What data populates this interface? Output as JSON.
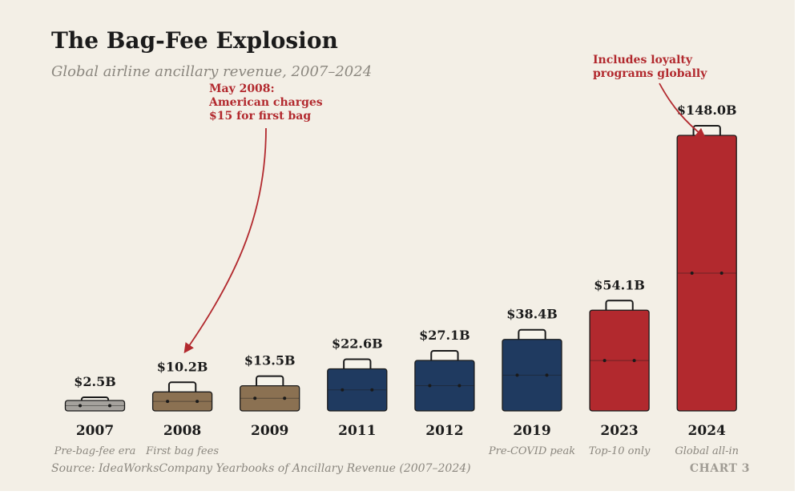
{
  "title": "The Bag-Fee Explosion",
  "subtitle": "Global airline ancillary revenue, 2007–2024",
  "source": "Source: IdeaWorksCompany Yearbooks of Ancillary Revenue (2007–2024)",
  "chart_label": "CHART 3",
  "colors": {
    "background": "#f3efe6",
    "pre_fee": "#a5a29d",
    "early_fees": "#8b7152",
    "growth": "#1f3a60",
    "highlight": "#b2292e",
    "annotation": "#b2292e"
  },
  "chart_data": {
    "type": "bar",
    "title": "The Bag-Fee Explosion",
    "subtitle": "Global airline ancillary revenue, 2007–2024",
    "xlabel": "",
    "ylabel": "",
    "unit": "billion USD",
    "ylim": [
      0,
      148
    ],
    "grid": false,
    "categories": [
      "2007",
      "2008",
      "2009",
      "2011",
      "2012",
      "2019",
      "2023",
      "2024"
    ],
    "values": [
      2.5,
      10.2,
      13.5,
      22.6,
      27.1,
      38.4,
      54.1,
      148.0
    ],
    "value_labels": [
      "$2.5B",
      "$10.2B",
      "$13.5B",
      "$22.6B",
      "$27.1B",
      "$38.4B",
      "$54.1B",
      "$148.0B"
    ],
    "notes": [
      "Pre-bag-fee era",
      "First bag fees",
      "",
      "",
      "",
      "Pre-COVID peak",
      "Top-10 only",
      "Global all-in"
    ],
    "bar_colors": [
      "#a5a29d",
      "#8b7152",
      "#8b7152",
      "#1f3a60",
      "#1f3a60",
      "#1f3a60",
      "#b2292e",
      "#b2292e"
    ],
    "annotations": [
      {
        "target": "2008",
        "lines": [
          "May 2008:",
          "American charges",
          "$15 for first bag"
        ]
      },
      {
        "target": "2024",
        "lines": [
          "Includes loyalty",
          "programs globally"
        ]
      }
    ]
  }
}
